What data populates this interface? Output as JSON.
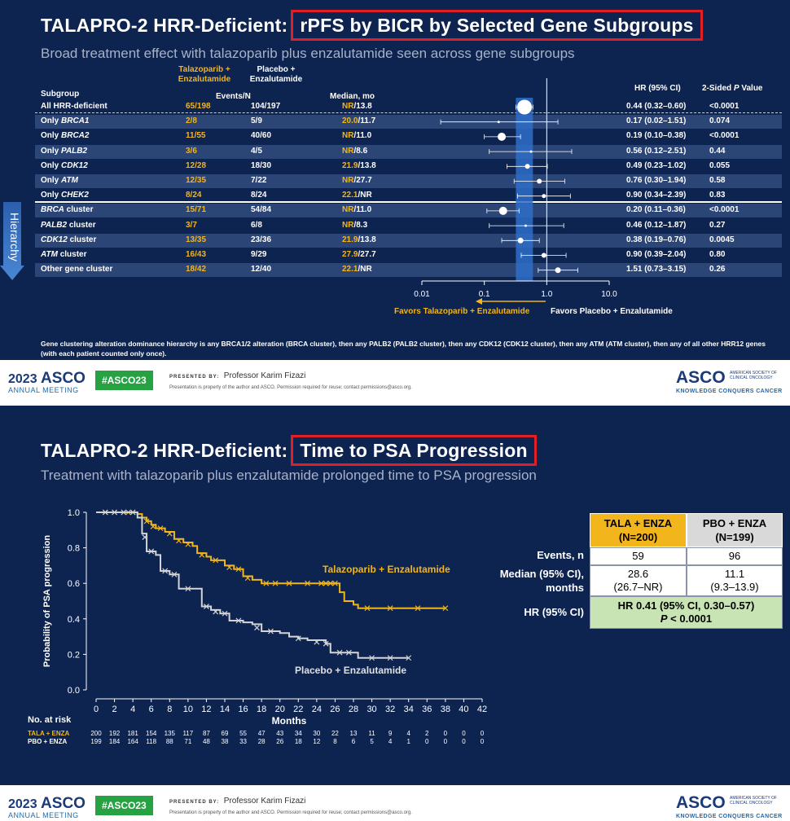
{
  "slide1": {
    "title_prefix": "TALAPRO-2 HRR-Deficient:",
    "title_highlight": "rPFS by BICR by Selected Gene Subgroups",
    "subtitle": "Broad treatment effect with talazoparib plus enzalutamide seen across gene subgroups",
    "headers": {
      "subgroup": "Subgroup",
      "tal_arm": "Talazoparib + Enzalutamide",
      "pbo_arm": "Placebo + Enzalutamide",
      "events": "Events/N",
      "median": "Median, mo",
      "hr": "HR (95% CI)",
      "pvalue_prefix": "2-Sided",
      "pvalue_p": "P",
      "pvalue_suffix": "Value"
    },
    "hierarchy_label": "Hierarchy",
    "footnote": "Gene clustering alteration dominance hierarchy is any BRCA1/2 alteration (BRCA cluster), then any PALB2 (PALB2 cluster), then any CDK12 (CDK12 cluster), then any ATM (ATM cluster), then any of all other HRR12 genes (with each patient counted only once).",
    "favors_left": "Favors Talazoparib + Enzalutamide",
    "favors_right": "Favors Placebo + Enzalutamide",
    "axis_ticks": [
      "0.01",
      "0.1",
      "1.0",
      "10.0"
    ]
  },
  "slide2": {
    "title_prefix": "TALAPRO-2 HRR-Deficient:",
    "title_highlight": "Time to PSA Progression",
    "subtitle": "Treatment with talazoparib plus enzalutamide prolonged time to PSA progression",
    "table": {
      "col1": "TALA + ENZA",
      "col1_n": "(N=200)",
      "col2": "PBO + ENZA",
      "col2_n": "(N=199)",
      "row_events_label": "Events, n",
      "events1": "59",
      "events2": "96",
      "row_median_label_1": "Median (95% CI),",
      "row_median_label_2": "months",
      "median1": "28.6",
      "median1_ci": "(26.7–NR)",
      "median2": "11.1",
      "median2_ci": "(9.3–13.9)",
      "row_hr_label": "HR (95% CI)",
      "hr_value": "HR 0.41 (95% CI, 0.30–0.57)",
      "hr_p_italic": "P",
      "hr_p_rest": " < 0.0001"
    },
    "risk_label": "No. at risk",
    "risk_tala_label": "TALA + ENZA",
    "risk_pbo_label": "PBO + ENZA"
  },
  "footer": {
    "year": "2023",
    "asco": "ASCO",
    "annual": "ANNUAL MEETING",
    "hashtag": "#ASCO23",
    "presented_by": "PRESENTED BY:",
    "presenter": "Professor Karim Fizazi",
    "note": "Presentation is property of the author and ASCO. Permission required for reuse; contact permissions@asco.org.",
    "logo": "ASCO",
    "logo_society": "AMERICAN SOCIETY OF CLINICAL ONCOLOGY",
    "logo_tagline": "KNOWLEDGE CONQUERS CANCER"
  },
  "chart_data": [
    {
      "type": "forest",
      "title": "TALAPRO-2 HRR-Deficient: rPFS by BICR by Selected Gene Subgroups",
      "x_scale": "log",
      "xlim": [
        0.01,
        10.0
      ],
      "rows": [
        {
          "subgroup": "All HRR-deficient",
          "gene": "",
          "tal_events": "65/198",
          "pbo_events": "104/197",
          "median_tal": "NR",
          "median_pbo": "13.8",
          "hr": 0.44,
          "lo": 0.32,
          "hi": 0.6,
          "hr_text": "0.44 (0.32–0.60)",
          "p": "<0.0001",
          "size": 9
        },
        {
          "subgroup": "Only ",
          "gene": "BRCA1",
          "tal_events": "2/8",
          "pbo_events": "5/9",
          "median_tal": "20.0",
          "median_pbo": "11.7",
          "hr": 0.17,
          "lo": 0.02,
          "hi": 1.51,
          "hr_text": "0.17 (0.02–1.51)",
          "p": "0.074",
          "size": 1.5
        },
        {
          "subgroup": "Only ",
          "gene": "BRCA2",
          "tal_events": "11/55",
          "pbo_events": "40/60",
          "median_tal": "NR",
          "median_pbo": "11.0",
          "hr": 0.19,
          "lo": 0.1,
          "hi": 0.38,
          "hr_text": "0.19 (0.10–0.38)",
          "p": "<0.0001",
          "size": 5
        },
        {
          "subgroup": "Only ",
          "gene": "PALB2",
          "tal_events": "3/6",
          "pbo_events": "4/5",
          "median_tal": "NR",
          "median_pbo": "8.6",
          "hr": 0.56,
          "lo": 0.12,
          "hi": 2.51,
          "hr_text": "0.56 (0.12–2.51)",
          "p": "0.44",
          "size": 1.5
        },
        {
          "subgroup": "Only ",
          "gene": "CDK12",
          "tal_events": "12/28",
          "pbo_events": "18/30",
          "median_tal": "21.9",
          "median_pbo": "13.8",
          "hr": 0.49,
          "lo": 0.23,
          "hi": 1.02,
          "hr_text": "0.49 (0.23–1.02)",
          "p": "0.055",
          "size": 3
        },
        {
          "subgroup": "Only ",
          "gene": "ATM",
          "tal_events": "12/35",
          "pbo_events": "7/22",
          "median_tal": "NR",
          "median_pbo": "27.7",
          "hr": 0.76,
          "lo": 0.3,
          "hi": 1.94,
          "hr_text": "0.76 (0.30–1.94)",
          "p": "0.58",
          "size": 3
        },
        {
          "subgroup": "Only ",
          "gene": "CHEK2",
          "tal_events": "8/24",
          "pbo_events": "8/24",
          "median_tal": "22.1",
          "median_pbo": "NR",
          "hr": 0.9,
          "lo": 0.34,
          "hi": 2.39,
          "hr_text": "0.90 (0.34–2.39)",
          "p": "0.83",
          "size": 2.5
        },
        {
          "subgroup": " cluster",
          "gene": "BRCA",
          "gene_first": true,
          "tal_events": "15/71",
          "pbo_events": "54/84",
          "median_tal": "NR",
          "median_pbo": "11.0",
          "hr": 0.2,
          "lo": 0.11,
          "hi": 0.36,
          "hr_text": "0.20 (0.11–0.36)",
          "p": "<0.0001",
          "size": 5
        },
        {
          "subgroup": " cluster",
          "gene": "PALB2",
          "gene_first": true,
          "tal_events": "3/7",
          "pbo_events": "6/8",
          "median_tal": "NR",
          "median_pbo": "8.3",
          "hr": 0.46,
          "lo": 0.12,
          "hi": 1.87,
          "hr_text": "0.46 (0.12–1.87)",
          "p": "0.27",
          "size": 1.5
        },
        {
          "subgroup": " cluster",
          "gene": "CDK12",
          "gene_first": true,
          "tal_events": "13/35",
          "pbo_events": "23/36",
          "median_tal": "21.9",
          "median_pbo": "13.8",
          "hr": 0.38,
          "lo": 0.19,
          "hi": 0.76,
          "hr_text": "0.38 (0.19–0.76)",
          "p": "0.0045",
          "size": 3.5
        },
        {
          "subgroup": " cluster",
          "gene": "ATM",
          "gene_first": true,
          "tal_events": "16/43",
          "pbo_events": "9/29",
          "median_tal": "27.9",
          "median_pbo": "27.7",
          "hr": 0.9,
          "lo": 0.39,
          "hi": 2.04,
          "hr_text": "0.90 (0.39–2.04)",
          "p": "0.80",
          "size": 3
        },
        {
          "subgroup": "Other gene cluster",
          "gene": "",
          "tal_events": "18/42",
          "pbo_events": "12/40",
          "median_tal": "22.1",
          "median_pbo": "NR",
          "hr": 1.51,
          "lo": 0.73,
          "hi": 3.15,
          "hr_text": "1.51 (0.73–3.15)",
          "p": "0.26",
          "size": 3.5
        }
      ]
    },
    {
      "type": "line",
      "title": "TALAPRO-2 HRR-Deficient: Time to PSA Progression",
      "xlabel": "Months",
      "ylabel": "Probability of PSA progression",
      "xlim": [
        0,
        42
      ],
      "ylim": [
        0,
        1.0
      ],
      "x_ticks": [
        0,
        2,
        4,
        6,
        8,
        10,
        12,
        14,
        16,
        18,
        20,
        22,
        24,
        26,
        28,
        30,
        32,
        34,
        36,
        38,
        40,
        42
      ],
      "y_ticks": [
        "0.0",
        "0.2",
        "0.4",
        "0.6",
        "0.8",
        "1.0"
      ],
      "series": [
        {
          "name": "Talazoparib + Enzalutamide",
          "color": "#f2b51c",
          "steps": [
            [
              0,
              1.0
            ],
            [
              4.5,
              0.99
            ],
            [
              5,
              0.97
            ],
            [
              5.5,
              0.95
            ],
            [
              6,
              0.93
            ],
            [
              6.5,
              0.91
            ],
            [
              7.5,
              0.89
            ],
            [
              8.5,
              0.85
            ],
            [
              9.5,
              0.83
            ],
            [
              10.5,
              0.81
            ],
            [
              11,
              0.77
            ],
            [
              12,
              0.75
            ],
            [
              12.5,
              0.73
            ],
            [
              14,
              0.7
            ],
            [
              15,
              0.68
            ],
            [
              16,
              0.64
            ],
            [
              17,
              0.62
            ],
            [
              18,
              0.6
            ],
            [
              20,
              0.6
            ],
            [
              24,
              0.6
            ],
            [
              26,
              0.6
            ],
            [
              26.5,
              0.55
            ],
            [
              27,
              0.5
            ],
            [
              28,
              0.48
            ],
            [
              28.5,
              0.46
            ],
            [
              38,
              0.46
            ]
          ],
          "censors": [
            [
              1,
              1.0
            ],
            [
              2,
              1.0
            ],
            [
              3,
              1.0
            ],
            [
              3.5,
              1.0
            ],
            [
              4,
              1.0
            ],
            [
              5.5,
              0.95
            ],
            [
              6.2,
              0.92
            ],
            [
              7,
              0.91
            ],
            [
              8,
              0.88
            ],
            [
              9,
              0.84
            ],
            [
              10,
              0.82
            ],
            [
              11.5,
              0.76
            ],
            [
              13,
              0.73
            ],
            [
              14.5,
              0.69
            ],
            [
              15.5,
              0.68
            ],
            [
              16.5,
              0.63
            ],
            [
              18.5,
              0.6
            ],
            [
              19.5,
              0.6
            ],
            [
              21,
              0.6
            ],
            [
              23,
              0.6
            ],
            [
              24.5,
              0.6
            ],
            [
              25,
              0.6
            ],
            [
              25.5,
              0.6
            ],
            [
              26,
              0.6
            ],
            [
              29.5,
              0.46
            ],
            [
              32,
              0.46
            ],
            [
              35,
              0.46
            ],
            [
              38,
              0.46
            ]
          ]
        },
        {
          "name": "Placebo + Enzalutamide",
          "color": "#d4d4d4",
          "steps": [
            [
              0,
              1.0
            ],
            [
              4.5,
              0.97
            ],
            [
              5,
              0.88
            ],
            [
              5.5,
              0.78
            ],
            [
              6.5,
              0.76
            ],
            [
              7,
              0.67
            ],
            [
              8,
              0.65
            ],
            [
              9,
              0.57
            ],
            [
              10.5,
              0.57
            ],
            [
              11.5,
              0.47
            ],
            [
              12.5,
              0.45
            ],
            [
              13.5,
              0.43
            ],
            [
              14.5,
              0.39
            ],
            [
              16,
              0.38
            ],
            [
              17,
              0.37
            ],
            [
              18,
              0.33
            ],
            [
              20,
              0.32
            ],
            [
              21,
              0.3
            ],
            [
              22,
              0.29
            ],
            [
              23,
              0.28
            ],
            [
              25,
              0.26
            ],
            [
              25.5,
              0.21
            ],
            [
              28,
              0.21
            ],
            [
              28.5,
              0.18
            ],
            [
              34,
              0.18
            ]
          ],
          "censors": [
            [
              1,
              1.0
            ],
            [
              2,
              1.0
            ],
            [
              3,
              1.0
            ],
            [
              4,
              1.0
            ],
            [
              5.3,
              0.86
            ],
            [
              6,
              0.78
            ],
            [
              7.5,
              0.67
            ],
            [
              8.5,
              0.65
            ],
            [
              10,
              0.57
            ],
            [
              12,
              0.47
            ],
            [
              13,
              0.44
            ],
            [
              14,
              0.43
            ],
            [
              15.5,
              0.39
            ],
            [
              17.5,
              0.35
            ],
            [
              19,
              0.33
            ],
            [
              22,
              0.29
            ],
            [
              24,
              0.27
            ],
            [
              25,
              0.26
            ],
            [
              26.5,
              0.21
            ],
            [
              27.5,
              0.21
            ],
            [
              30,
              0.18
            ],
            [
              32,
              0.18
            ],
            [
              34,
              0.18
            ]
          ]
        }
      ],
      "labels": [
        "Talazoparib + Enzalutamide",
        "Placebo + Enzalutamide"
      ],
      "risk_tala": [
        "200",
        "192",
        "181",
        "154",
        "135",
        "117",
        "87",
        "69",
        "55",
        "47",
        "43",
        "34",
        "30",
        "22",
        "13",
        "11",
        "9",
        "4",
        "2",
        "0",
        "0",
        "0"
      ],
      "risk_pbo": [
        "199",
        "184",
        "164",
        "118",
        "88",
        "71",
        "48",
        "38",
        "33",
        "28",
        "26",
        "18",
        "12",
        "8",
        "6",
        "5",
        "4",
        "1",
        "0",
        "0",
        "0",
        "0"
      ]
    }
  ]
}
